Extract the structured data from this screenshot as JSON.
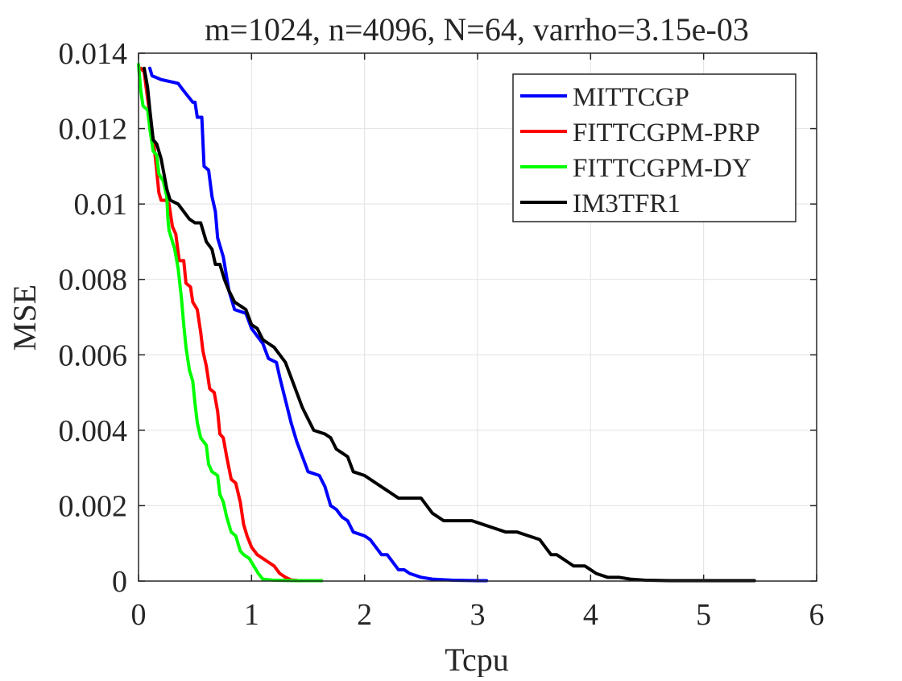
{
  "chart_data": {
    "type": "line",
    "title": "m=1024, n=4096, N=64, varrho=3.15e-03",
    "xlabel": "Tcpu",
    "ylabel": "MSE",
    "xlim": [
      0,
      6
    ],
    "ylim": [
      0,
      0.014
    ],
    "xticks": [
      "0",
      "1",
      "2",
      "3",
      "4",
      "5",
      "6"
    ],
    "yticks": [
      "0",
      "0.002",
      "0.004",
      "0.006",
      "0.008",
      "0.01",
      "0.012",
      "0.014"
    ],
    "grid": true,
    "legend_position": "top-right",
    "series": [
      {
        "name": "MITTCGP",
        "color": "#0000ff",
        "points": [
          [
            0.1,
            0.0136
          ],
          [
            0.12,
            0.0134
          ],
          [
            0.2,
            0.0133
          ],
          [
            0.35,
            0.0132
          ],
          [
            0.4,
            0.013
          ],
          [
            0.48,
            0.0127
          ],
          [
            0.5,
            0.0127
          ],
          [
            0.52,
            0.0123
          ],
          [
            0.56,
            0.0123
          ],
          [
            0.58,
            0.011
          ],
          [
            0.62,
            0.0109
          ],
          [
            0.65,
            0.0102
          ],
          [
            0.68,
            0.0098
          ],
          [
            0.7,
            0.0091
          ],
          [
            0.75,
            0.0086
          ],
          [
            0.8,
            0.0077
          ],
          [
            0.85,
            0.0072
          ],
          [
            0.95,
            0.0071
          ],
          [
            1.0,
            0.0067
          ],
          [
            1.1,
            0.0063
          ],
          [
            1.15,
            0.0059
          ],
          [
            1.22,
            0.0058
          ],
          [
            1.25,
            0.0054
          ],
          [
            1.3,
            0.0048
          ],
          [
            1.35,
            0.0042
          ],
          [
            1.4,
            0.0037
          ],
          [
            1.45,
            0.0033
          ],
          [
            1.5,
            0.0029
          ],
          [
            1.6,
            0.0028
          ],
          [
            1.65,
            0.0025
          ],
          [
            1.7,
            0.002
          ],
          [
            1.75,
            0.0019
          ],
          [
            1.8,
            0.0017
          ],
          [
            1.85,
            0.0016
          ],
          [
            1.9,
            0.0013
          ],
          [
            2.0,
            0.0012
          ],
          [
            2.05,
            0.0011
          ],
          [
            2.1,
            0.0009
          ],
          [
            2.15,
            0.0007
          ],
          [
            2.2,
            0.0007
          ],
          [
            2.25,
            0.0005
          ],
          [
            2.3,
            0.0003
          ],
          [
            2.35,
            0.0003
          ],
          [
            2.4,
            0.0002
          ],
          [
            2.5,
            0.0001
          ],
          [
            2.6,
            5e-05
          ],
          [
            2.8,
            2e-05
          ],
          [
            3.0,
            1e-05
          ],
          [
            3.08,
            1e-05
          ]
        ]
      },
      {
        "name": "FITTCGPM-PRP",
        "color": "#ff0000",
        "points": [
          [
            0.02,
            0.0136
          ],
          [
            0.05,
            0.0135
          ],
          [
            0.08,
            0.0128
          ],
          [
            0.1,
            0.0124
          ],
          [
            0.13,
            0.0117
          ],
          [
            0.15,
            0.0112
          ],
          [
            0.18,
            0.0103
          ],
          [
            0.2,
            0.0101
          ],
          [
            0.24,
            0.0101
          ],
          [
            0.27,
            0.01
          ],
          [
            0.3,
            0.0094
          ],
          [
            0.33,
            0.0092
          ],
          [
            0.36,
            0.0085
          ],
          [
            0.4,
            0.0085
          ],
          [
            0.42,
            0.0079
          ],
          [
            0.46,
            0.0078
          ],
          [
            0.48,
            0.0074
          ],
          [
            0.52,
            0.0072
          ],
          [
            0.55,
            0.0066
          ],
          [
            0.57,
            0.0061
          ],
          [
            0.6,
            0.0057
          ],
          [
            0.63,
            0.0051
          ],
          [
            0.67,
            0.005
          ],
          [
            0.7,
            0.0045
          ],
          [
            0.72,
            0.0039
          ],
          [
            0.75,
            0.0038
          ],
          [
            0.78,
            0.0033
          ],
          [
            0.82,
            0.0027
          ],
          [
            0.86,
            0.0026
          ],
          [
            0.9,
            0.0021
          ],
          [
            0.93,
            0.0015
          ],
          [
            0.96,
            0.0012
          ],
          [
            1.0,
            0.0009
          ],
          [
            1.05,
            0.0007
          ],
          [
            1.1,
            0.0006
          ],
          [
            1.15,
            0.0005
          ],
          [
            1.2,
            0.0004
          ],
          [
            1.25,
            0.0002
          ],
          [
            1.3,
            0.0001
          ],
          [
            1.35,
            3e-05
          ],
          [
            1.4,
            2e-05
          ]
        ]
      },
      {
        "name": "FITTCGPM-DY",
        "color": "#00ff00",
        "points": [
          [
            0.0,
            0.0137
          ],
          [
            0.02,
            0.013
          ],
          [
            0.04,
            0.0126
          ],
          [
            0.08,
            0.0125
          ],
          [
            0.1,
            0.012
          ],
          [
            0.13,
            0.0114
          ],
          [
            0.16,
            0.0113
          ],
          [
            0.18,
            0.0108
          ],
          [
            0.22,
            0.0106
          ],
          [
            0.25,
            0.0102
          ],
          [
            0.26,
            0.0096
          ],
          [
            0.27,
            0.0093
          ],
          [
            0.3,
            0.009
          ],
          [
            0.32,
            0.0088
          ],
          [
            0.35,
            0.0083
          ],
          [
            0.38,
            0.0075
          ],
          [
            0.4,
            0.0068
          ],
          [
            0.42,
            0.0062
          ],
          [
            0.45,
            0.0056
          ],
          [
            0.48,
            0.0053
          ],
          [
            0.5,
            0.0047
          ],
          [
            0.52,
            0.0042
          ],
          [
            0.55,
            0.0038
          ],
          [
            0.6,
            0.0036
          ],
          [
            0.62,
            0.0031
          ],
          [
            0.65,
            0.0029
          ],
          [
            0.7,
            0.0028
          ],
          [
            0.72,
            0.0023
          ],
          [
            0.75,
            0.0021
          ],
          [
            0.78,
            0.0017
          ],
          [
            0.82,
            0.0013
          ],
          [
            0.86,
            0.0012
          ],
          [
            0.9,
            0.0008
          ],
          [
            0.93,
            0.0007
          ],
          [
            0.98,
            0.0006
          ],
          [
            1.02,
            0.0004
          ],
          [
            1.06,
            0.0002
          ],
          [
            1.1,
            5e-05
          ],
          [
            1.2,
            2e-05
          ],
          [
            1.4,
            1e-05
          ],
          [
            1.62,
            1e-05
          ]
        ]
      },
      {
        "name": "IM3TFR1",
        "color": "#000000",
        "points": [
          [
            0.05,
            0.0136
          ],
          [
            0.08,
            0.0131
          ],
          [
            0.1,
            0.0125
          ],
          [
            0.13,
            0.0117
          ],
          [
            0.16,
            0.0116
          ],
          [
            0.2,
            0.0112
          ],
          [
            0.25,
            0.0104
          ],
          [
            0.28,
            0.0101
          ],
          [
            0.35,
            0.01
          ],
          [
            0.4,
            0.0098
          ],
          [
            0.45,
            0.0096
          ],
          [
            0.5,
            0.0095
          ],
          [
            0.55,
            0.0095
          ],
          [
            0.6,
            0.009
          ],
          [
            0.65,
            0.0088
          ],
          [
            0.68,
            0.0084
          ],
          [
            0.72,
            0.0084
          ],
          [
            0.76,
            0.008
          ],
          [
            0.8,
            0.0077
          ],
          [
            0.85,
            0.0074
          ],
          [
            0.9,
            0.0073
          ],
          [
            0.95,
            0.0072
          ],
          [
            1.0,
            0.0068
          ],
          [
            1.05,
            0.0067
          ],
          [
            1.1,
            0.0064
          ],
          [
            1.15,
            0.0063
          ],
          [
            1.2,
            0.0062
          ],
          [
            1.25,
            0.006
          ],
          [
            1.3,
            0.0058
          ],
          [
            1.35,
            0.0054
          ],
          [
            1.4,
            0.005
          ],
          [
            1.45,
            0.0046
          ],
          [
            1.5,
            0.0043
          ],
          [
            1.55,
            0.004
          ],
          [
            1.65,
            0.0039
          ],
          [
            1.7,
            0.0038
          ],
          [
            1.75,
            0.0035
          ],
          [
            1.8,
            0.0034
          ],
          [
            1.85,
            0.0033
          ],
          [
            1.9,
            0.0029
          ],
          [
            2.0,
            0.0028
          ],
          [
            2.05,
            0.0027
          ],
          [
            2.1,
            0.0026
          ],
          [
            2.15,
            0.0025
          ],
          [
            2.2,
            0.0024
          ],
          [
            2.25,
            0.0023
          ],
          [
            2.3,
            0.0022
          ],
          [
            2.4,
            0.0022
          ],
          [
            2.5,
            0.0022
          ],
          [
            2.55,
            0.002
          ],
          [
            2.6,
            0.0018
          ],
          [
            2.65,
            0.0017
          ],
          [
            2.7,
            0.0016
          ],
          [
            2.85,
            0.0016
          ],
          [
            2.95,
            0.0016
          ],
          [
            3.05,
            0.0015
          ],
          [
            3.15,
            0.0014
          ],
          [
            3.25,
            0.0013
          ],
          [
            3.35,
            0.0013
          ],
          [
            3.45,
            0.0012
          ],
          [
            3.55,
            0.0011
          ],
          [
            3.6,
            0.0009
          ],
          [
            3.65,
            0.0007
          ],
          [
            3.7,
            0.0007
          ],
          [
            3.75,
            0.0006
          ],
          [
            3.8,
            0.0005
          ],
          [
            3.85,
            0.0004
          ],
          [
            3.95,
            0.0004
          ],
          [
            4.0,
            0.0003
          ],
          [
            4.05,
            0.0002
          ],
          [
            4.15,
            0.0001
          ],
          [
            4.25,
            0.0001
          ],
          [
            4.35,
            5e-05
          ],
          [
            4.5,
            2e-05
          ],
          [
            4.7,
            1e-05
          ],
          [
            5.0,
            1e-05
          ],
          [
            5.45,
            1e-05
          ]
        ]
      }
    ]
  }
}
